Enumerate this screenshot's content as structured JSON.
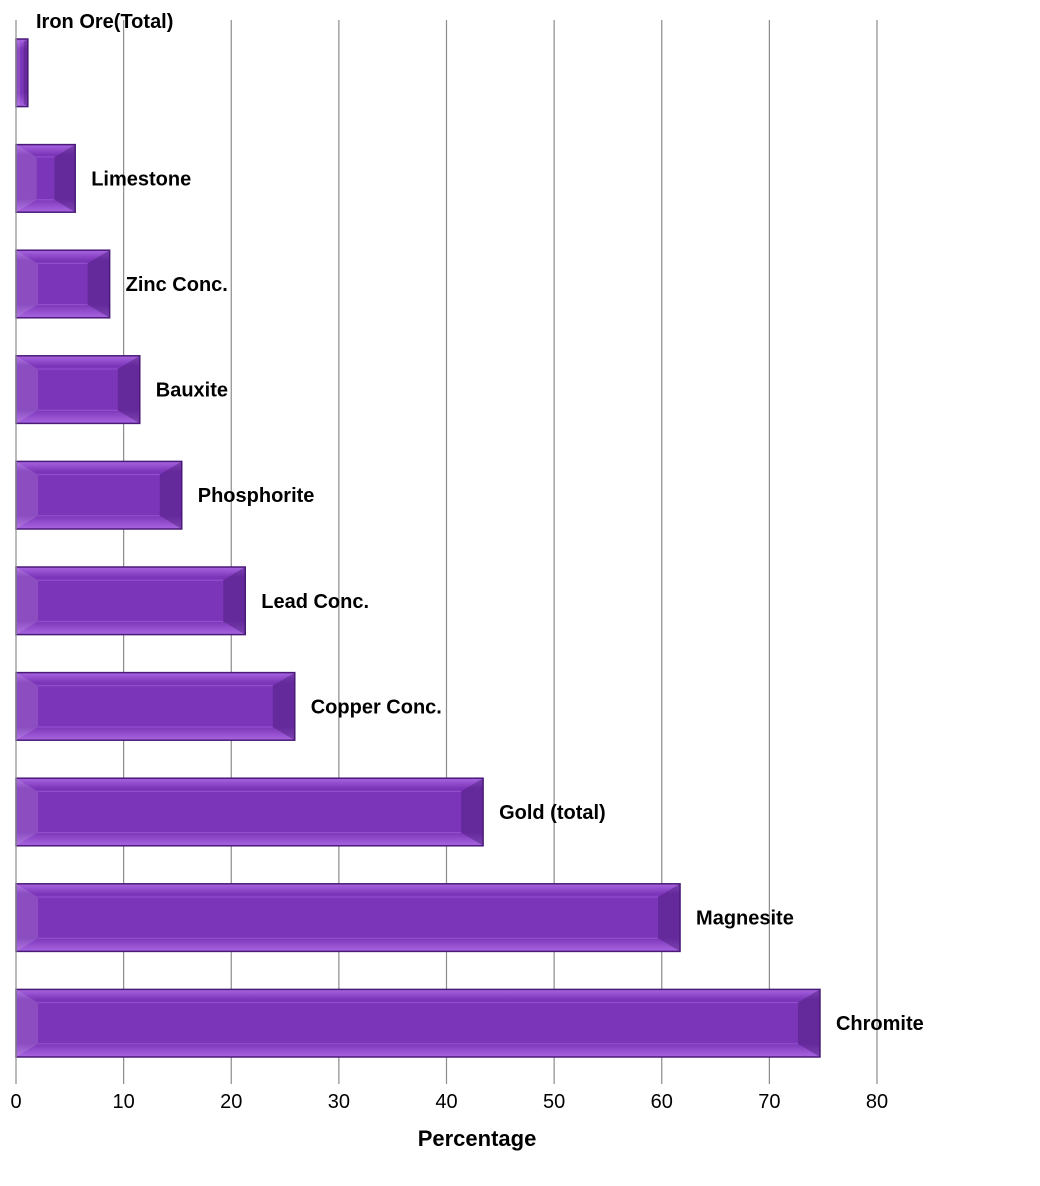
{
  "chart_data": {
    "type": "bar",
    "orientation": "horizontal",
    "categories": [
      "Iron Ore(Total)",
      "Limestone",
      "Zinc Conc.",
      "Bauxite",
      "Phosphorite",
      "Lead Conc.",
      "Copper Conc.",
      "Gold (total)",
      "Magnesite",
      "Chromite"
    ],
    "values": [
      1.1,
      5.5,
      8.7,
      11.5,
      15.4,
      21.3,
      25.9,
      43.4,
      61.7,
      74.7
    ],
    "title": "",
    "xlabel": "Percentage",
    "ylabel": "",
    "xlim": [
      0,
      80
    ],
    "xticks": [
      0,
      10,
      20,
      30,
      40,
      50,
      60,
      70,
      80
    ],
    "grid": "vertical",
    "legend": "none",
    "colors": {
      "bar": "#7b35b8",
      "bar_dark": "#4a1a78",
      "bar_light": "#a865e0",
      "grid": "#8c8c8c"
    }
  }
}
